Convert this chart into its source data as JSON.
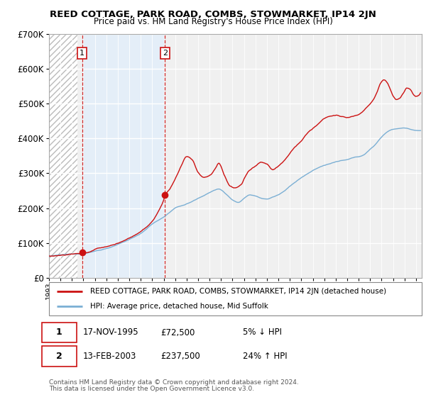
{
  "title": "REED COTTAGE, PARK ROAD, COMBS, STOWMARKET, IP14 2JN",
  "subtitle": "Price paid vs. HM Land Registry's House Price Index (HPI)",
  "ylim": [
    0,
    700000
  ],
  "yticks": [
    0,
    100000,
    200000,
    300000,
    400000,
    500000,
    600000,
    700000
  ],
  "ytick_labels": [
    "£0",
    "£100K",
    "£200K",
    "£300K",
    "£400K",
    "£500K",
    "£600K",
    "£700K"
  ],
  "xlim_years": [
    1993.0,
    2025.5
  ],
  "hpi_color": "#7bafd4",
  "price_color": "#cc1111",
  "sale1_x": 1995.88,
  "sale1_y": 72500,
  "sale2_x": 2003.12,
  "sale2_y": 237500,
  "legend_line1": "REED COTTAGE, PARK ROAD, COMBS, STOWMARKET, IP14 2JN (detached house)",
  "legend_line2": "HPI: Average price, detached house, Mid Suffolk",
  "table_row1": [
    "1",
    "17-NOV-1995",
    "£72,500",
    "5% ↓ HPI"
  ],
  "table_row2": [
    "2",
    "13-FEB-2003",
    "£237,500",
    "24% ↑ HPI"
  ],
  "footnote1": "Contains HM Land Registry data © Crown copyright and database right 2024.",
  "footnote2": "This data is licensed under the Open Government Licence v3.0.",
  "hatch_end_year": 1995.5,
  "highlight_color": "#ddeeff"
}
